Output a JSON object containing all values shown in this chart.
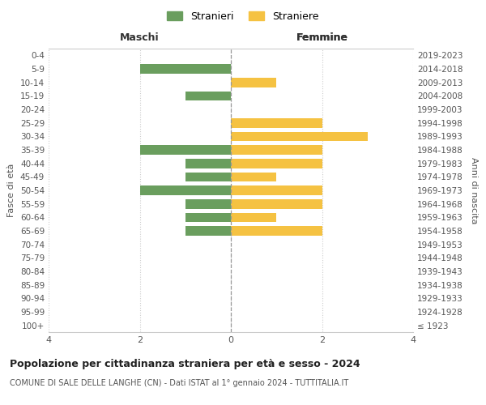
{
  "age_groups": [
    "100+",
    "95-99",
    "90-94",
    "85-89",
    "80-84",
    "75-79",
    "70-74",
    "65-69",
    "60-64",
    "55-59",
    "50-54",
    "45-49",
    "40-44",
    "35-39",
    "30-34",
    "25-29",
    "20-24",
    "15-19",
    "10-14",
    "5-9",
    "0-4"
  ],
  "birth_years": [
    "≤ 1923",
    "1924-1928",
    "1929-1933",
    "1934-1938",
    "1939-1943",
    "1944-1948",
    "1949-1953",
    "1954-1958",
    "1959-1963",
    "1964-1968",
    "1969-1973",
    "1974-1978",
    "1979-1983",
    "1984-1988",
    "1989-1993",
    "1994-1998",
    "1999-2003",
    "2004-2008",
    "2009-2013",
    "2014-2018",
    "2019-2023"
  ],
  "maschi": [
    0,
    0,
    0,
    0,
    0,
    0,
    0,
    1,
    1,
    1,
    2,
    1,
    1,
    2,
    0,
    0,
    0,
    1,
    0,
    2,
    0
  ],
  "femmine": [
    0,
    0,
    0,
    0,
    0,
    0,
    0,
    2,
    1,
    2,
    2,
    1,
    2,
    2,
    3,
    2,
    0,
    0,
    1,
    0,
    0
  ],
  "color_maschi": "#6a9e5e",
  "color_femmine": "#f5c242",
  "title_main": "Popolazione per cittadinanza straniera per età e sesso - 2024",
  "title_sub": "COMUNE DI SALE DELLE LANGHE (CN) - Dati ISTAT al 1° gennaio 2024 - TUTTITALIA.IT",
  "legend_maschi": "Stranieri",
  "legend_femmine": "Straniere",
  "xlabel_left": "Maschi",
  "xlabel_right": "Femmine",
  "ylabel_left": "Fasce di età",
  "ylabel_right": "Anni di nascita",
  "xlim": 4,
  "background_color": "#ffffff",
  "grid_color": "#cccccc",
  "tick_color": "#555555"
}
